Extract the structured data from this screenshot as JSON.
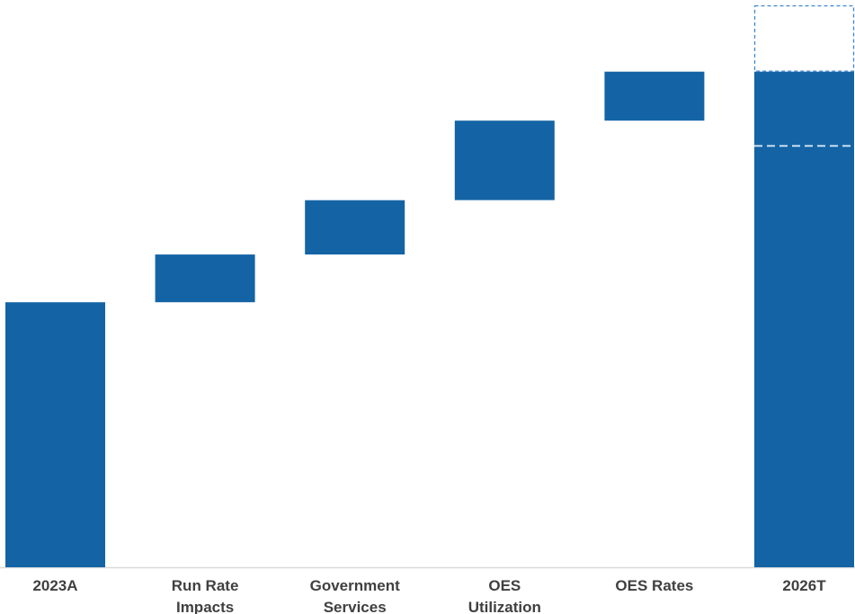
{
  "chart_data": {
    "type": "waterfall",
    "title": "",
    "xlabel": "",
    "ylabel": "",
    "categories": [
      {
        "label_lines": [
          "2023A"
        ],
        "kind": "total"
      },
      {
        "label_lines": [
          "Run Rate",
          "Impacts"
        ],
        "kind": "delta"
      },
      {
        "label_lines": [
          "Government",
          "Services"
        ],
        "kind": "delta"
      },
      {
        "label_lines": [
          "OES",
          "Utilization"
        ],
        "kind": "delta"
      },
      {
        "label_lines": [
          "OES Rates"
        ],
        "kind": "delta"
      },
      {
        "label_lines": [
          "2026T"
        ],
        "kind": "total"
      }
    ],
    "steps": [
      {
        "start": 0,
        "end": 100
      },
      {
        "start": 100,
        "end": 118
      },
      {
        "start": 118,
        "end": 138.5
      },
      {
        "start": 138.5,
        "end": 168.5
      },
      {
        "start": 168.5,
        "end": 187
      },
      {
        "start": 0,
        "end": 187
      }
    ],
    "target_range": {
      "low": 159,
      "high": 212
    },
    "ylim": [
      0,
      212
    ],
    "grid": false,
    "legend": "none",
    "colors": {
      "bar": "#1464a5",
      "target_outline": "#3f86cf",
      "target_line": "#d6e5f4",
      "axis": "#d9d9d9",
      "label": "#404040"
    }
  }
}
